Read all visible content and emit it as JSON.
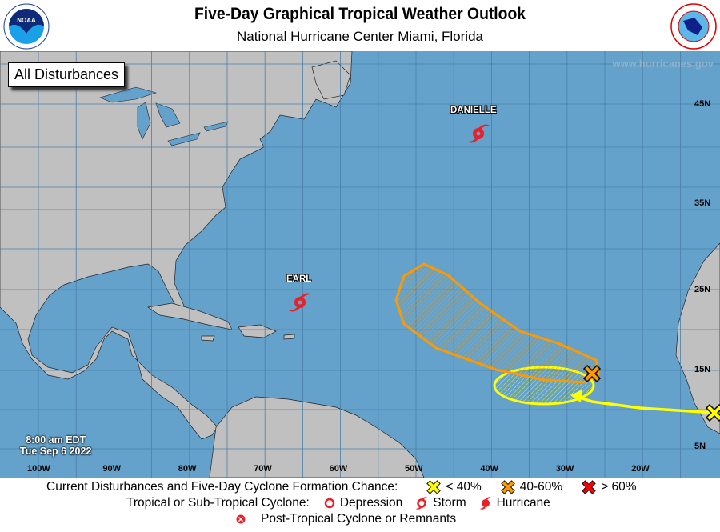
{
  "header": {
    "title": "Five-Day Graphical Tropical Weather Outlook",
    "subtitle": "National Hurricane Center  Miami, Florida",
    "left_logo": "NOAA",
    "right_logo": "NATIONAL WEATHER SERVICE"
  },
  "map": {
    "view_label": "All Disturbances",
    "website": "www.hurricanes.gov",
    "time": "8:00 am EDT",
    "date": "Tue Sep 6 2022",
    "longitude_labels": [
      "100W",
      "90W",
      "80W",
      "70W",
      "60W",
      "50W",
      "40W",
      "30W",
      "20W"
    ],
    "latitude_labels": [
      "45N",
      "35N",
      "25N",
      "15N",
      "5N"
    ],
    "colors": {
      "ocean": "#64a2cc",
      "land": "#c0c0c0",
      "low": "#ffff00",
      "medium": "#ff9900",
      "high": "#ff0000",
      "cyclone": "#e8202a"
    },
    "storms": [
      {
        "name": "DANIELLE",
        "type": "hurricane"
      },
      {
        "name": "EARL",
        "type": "hurricane"
      }
    ],
    "disturbances": [
      {
        "chance": "40-60%",
        "color": "#ff9900",
        "icon": "x-icon"
      },
      {
        "chance": "< 40%",
        "color": "#ffff00",
        "icon": "x-icon"
      }
    ]
  },
  "legend": {
    "formation_label": "Current Disturbances and Five-Day Cyclone Formation Chance:",
    "low": "< 40%",
    "medium": "40-60%",
    "high": "> 60%",
    "cyclone_label": "Tropical or Sub-Tropical Cyclone:",
    "depression": "Depression",
    "storm": "Storm",
    "hurricane": "Hurricane",
    "post_tropical": "Post-Tropical Cyclone or Remnants"
  }
}
